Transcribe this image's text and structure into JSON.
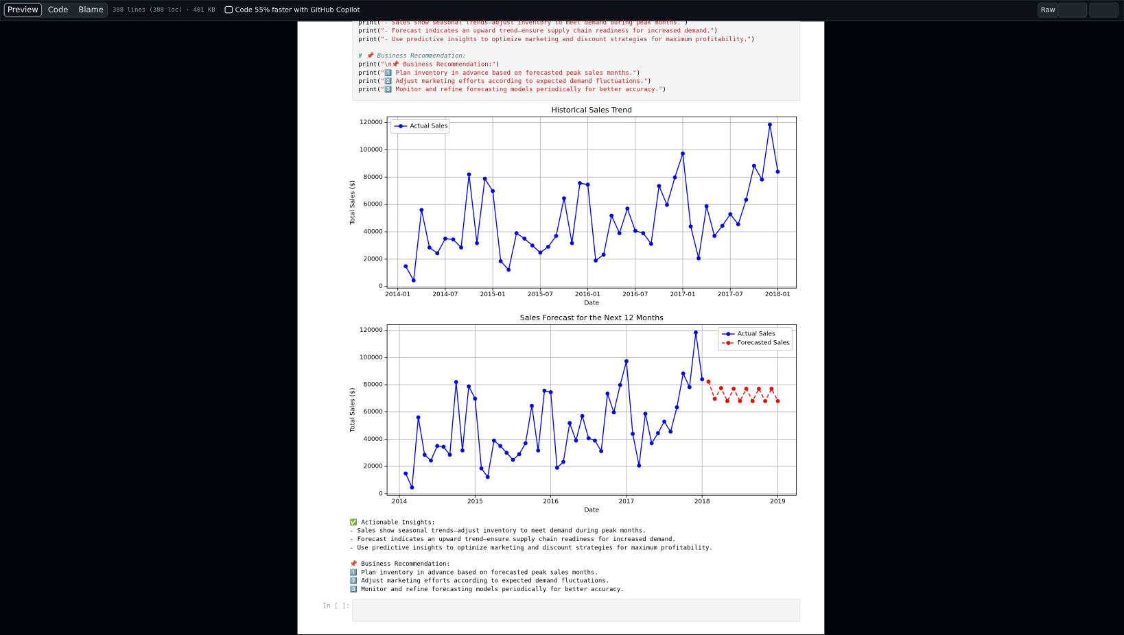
{
  "toolbar": {
    "tabs": [
      "Preview",
      "Code",
      "Blame"
    ],
    "file_info": "388 lines (388 loc) · 401 KB",
    "copilot": "Code 55% faster with GitHub Copilot",
    "raw": "Raw"
  },
  "code": {
    "lines": [
      "print(\"- Sales show seasonal trends—adjust inventory to meet demand during peak months.\")",
      "print(\"- Forecast indicates an upward trend—ensure supply chain readiness for increased demand.\")",
      "print(\"- Use predictive insights to optimize marketing and discount strategies for maximum profitability.\")",
      null,
      "# 📌 Business Recommendation:",
      "print(\"\\n📌 Business Recommendation:\")",
      "print(\"1️⃣ Plan inventory in advance based on forecasted peak sales months.\")",
      "print(\"2️⃣ Adjust marketing efforts according to expected demand fluctuations.\")",
      "print(\"3️⃣ Monitor and refine forecasting models periodically for better accuracy.\")"
    ]
  },
  "chart_data": [
    {
      "type": "line",
      "title": "Historical Sales Trend",
      "xlabel": "Date",
      "ylabel": "Total Sales ($)",
      "grid": true,
      "legend": "upper left",
      "ylim": [
        -1200,
        124100
      ],
      "yticks": [
        0,
        20000,
        40000,
        60000,
        80000,
        100000,
        120000
      ],
      "xticks": [
        "2014-01",
        "2014-07",
        "2015-01",
        "2015-07",
        "2016-01",
        "2016-07",
        "2017-01",
        "2017-07",
        "2018-01"
      ],
      "series": [
        {
          "name": "Actual Sales",
          "color": "#0000ff",
          "linestyle": "solid",
          "x": [
            "2014-01",
            "2014-02",
            "2014-03",
            "2014-04",
            "2014-05",
            "2014-06",
            "2014-07",
            "2014-08",
            "2014-09",
            "2014-10",
            "2014-11",
            "2014-12",
            "2015-01",
            "2015-02",
            "2015-03",
            "2015-04",
            "2015-05",
            "2015-06",
            "2015-07",
            "2015-08",
            "2015-09",
            "2015-10",
            "2015-11",
            "2015-12",
            "2016-01",
            "2016-02",
            "2016-03",
            "2016-04",
            "2016-05",
            "2016-06",
            "2016-07",
            "2016-08",
            "2016-09",
            "2016-10",
            "2016-11",
            "2016-12",
            "2017-01",
            "2017-02",
            "2017-03",
            "2017-04",
            "2017-05",
            "2017-06",
            "2017-07",
            "2017-08",
            "2017-09",
            "2017-10",
            "2017-11",
            "2017-12"
          ],
          "values": [
            14800,
            4500,
            56000,
            28500,
            24300,
            35000,
            34400,
            28500,
            82000,
            31700,
            78800,
            69800,
            18500,
            12200,
            39000,
            35000,
            30000,
            24800,
            29000,
            37000,
            64500,
            31700,
            75600,
            74500,
            19000,
            23300,
            51800,
            39000,
            57000,
            40700,
            39000,
            31200,
            73500,
            59700,
            79800,
            97300,
            43900,
            20600,
            58700,
            37000,
            44400,
            52900,
            45500,
            63400,
            88300,
            78200,
            118400,
            84000
          ]
        }
      ]
    },
    {
      "type": "line",
      "title": "Sales Forecast for the Next 12 Months",
      "xlabel": "Date",
      "ylabel": "Total Sales ($)",
      "grid": true,
      "legend": "upper right",
      "ylim": [
        -1200,
        124100
      ],
      "yticks": [
        0,
        20000,
        40000,
        60000,
        80000,
        100000,
        120000
      ],
      "xticks": [
        2014,
        2015,
        2016,
        2017,
        2018,
        2019
      ],
      "series": [
        {
          "name": "Actual Sales",
          "color": "#0000ff",
          "linestyle": "solid",
          "x": [
            "2014-01",
            "2014-02",
            "2014-03",
            "2014-04",
            "2014-05",
            "2014-06",
            "2014-07",
            "2014-08",
            "2014-09",
            "2014-10",
            "2014-11",
            "2014-12",
            "2015-01",
            "2015-02",
            "2015-03",
            "2015-04",
            "2015-05",
            "2015-06",
            "2015-07",
            "2015-08",
            "2015-09",
            "2015-10",
            "2015-11",
            "2015-12",
            "2016-01",
            "2016-02",
            "2016-03",
            "2016-04",
            "2016-05",
            "2016-06",
            "2016-07",
            "2016-08",
            "2016-09",
            "2016-10",
            "2016-11",
            "2016-12",
            "2017-01",
            "2017-02",
            "2017-03",
            "2017-04",
            "2017-05",
            "2017-06",
            "2017-07",
            "2017-08",
            "2017-09",
            "2017-10",
            "2017-11",
            "2017-12"
          ],
          "values": [
            14800,
            4500,
            56000,
            28500,
            24300,
            35000,
            34400,
            28500,
            82000,
            31700,
            78800,
            69800,
            18500,
            12200,
            39000,
            35000,
            30000,
            24800,
            29000,
            37000,
            64500,
            31700,
            75600,
            74500,
            19000,
            23300,
            51800,
            39000,
            57000,
            40700,
            39000,
            31200,
            73500,
            59700,
            79800,
            97300,
            43900,
            20600,
            58700,
            37000,
            44400,
            52900,
            45500,
            63400,
            88300,
            78200,
            118400,
            84000
          ]
        },
        {
          "name": "Forecasted Sales",
          "color": "#ff0000",
          "linestyle": "dashed",
          "x": [
            "2018-01",
            "2018-02",
            "2018-03",
            "2018-04",
            "2018-05",
            "2018-06",
            "2018-07",
            "2018-08",
            "2018-09",
            "2018-10",
            "2018-11",
            "2018-12"
          ],
          "values": [
            82300,
            69600,
            77500,
            68000,
            77000,
            68000,
            77000,
            68000,
            77000,
            68000,
            77000,
            68000
          ]
        }
      ]
    }
  ],
  "output": {
    "insights": [
      "✅ Actionable Insights:",
      "- Sales show seasonal trends—adjust inventory to meet demand during peak months.",
      "- Forecast indicates an upward trend—ensure supply chain readiness for increased demand.",
      "- Use predictive insights to optimize marketing and discount strategies for maximum profitability."
    ],
    "recommendations": [
      "📌 Business Recommendation:",
      "1️⃣ Plan inventory in advance based on forecasted peak sales months.",
      "2️⃣ Adjust marketing efforts according to expected demand fluctuations.",
      "3️⃣ Monitor and refine forecasting models periodically for better accuracy."
    ]
  },
  "prompt": "In [ ]:"
}
